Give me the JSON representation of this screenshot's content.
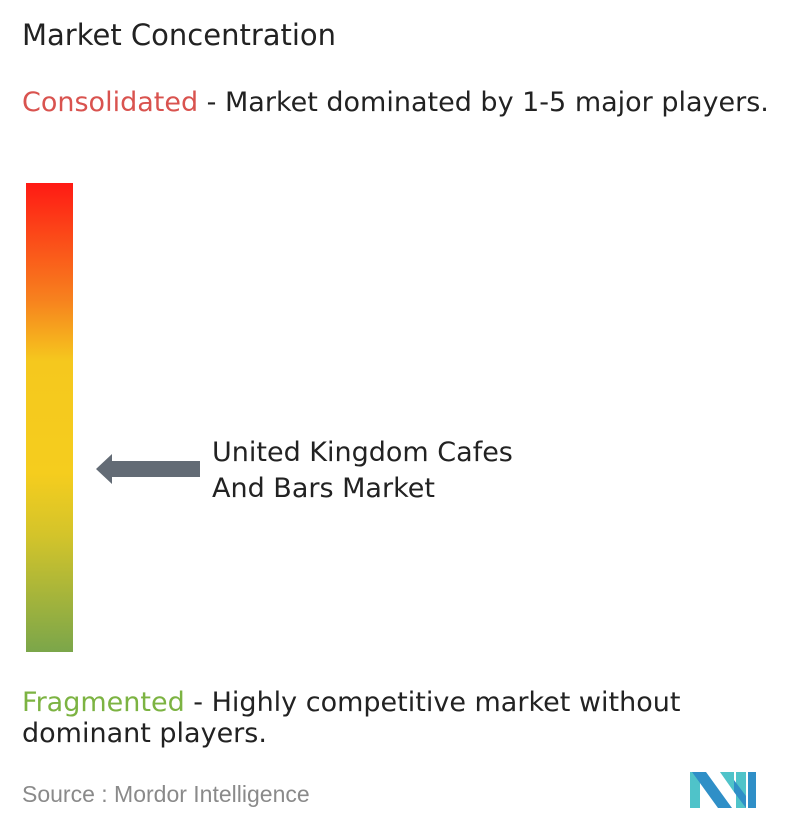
{
  "title": "Market Concentration",
  "consolidated": {
    "label": "Consolidated",
    "description": " - Market dominated by 1-5 major players.",
    "color": "#d9534f"
  },
  "fragmented": {
    "label": "Fragmented",
    "description": " - Highly competitive market without dominant players.",
    "color": "#7cb342"
  },
  "scale": {
    "colors_top_to_bottom": [
      "#ff1a14",
      "#f7821e",
      "#f5cd1e",
      "#f5cd1e",
      "#d4c42a",
      "#7ba64a"
    ]
  },
  "marker": {
    "label": "United Kingdom Cafes And Bars Market",
    "concentration_level": 0.39,
    "arrow_color": "#636b75"
  },
  "source": "Source :  Mordor Intelligence",
  "logo": {
    "text": "Mordor Intelligence",
    "colors": [
      "#2f8fc7",
      "#4fc3c9"
    ]
  }
}
